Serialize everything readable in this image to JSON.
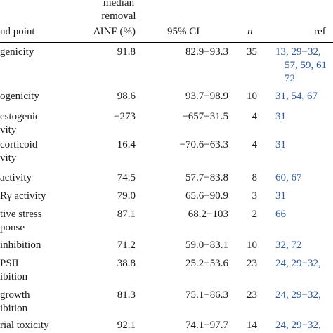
{
  "header": {
    "endpoint": "nd point",
    "removal_line1": "median",
    "removal_line2": "removal",
    "removal_line3": "ΔINF (%)",
    "ci": "95% CI",
    "n": "n",
    "ref": "ref"
  },
  "rows": [
    {
      "endpoint": [
        "genicity"
      ],
      "median": "91.8",
      "ci": "82.9−93.3",
      "n": "35",
      "refs": [
        "13, 29−32,",
        "57, 59, 61",
        "72"
      ]
    },
    {
      "endpoint": [
        "ogenicity"
      ],
      "median": "98.6",
      "ci": "93.7−98.9",
      "n": "10",
      "refs": [
        "31, 54, 67"
      ]
    },
    {
      "endpoint": [
        "estogenic",
        "vity"
      ],
      "median": "−273",
      "ci": "−657−31.5",
      "n": "4",
      "refs": [
        "31"
      ]
    },
    {
      "endpoint": [
        "corticoid",
        "vity"
      ],
      "median": "16.4",
      "ci": "−70.6−63.3",
      "n": "4",
      "refs": [
        "31"
      ]
    },
    {
      "endpoint": [
        "activity"
      ],
      "median": "74.5",
      "ci": "57.7−83.8",
      "n": "8",
      "refs": [
        "60, 67"
      ]
    },
    {
      "endpoint": [
        "Rγ activity"
      ],
      "median": "79.0",
      "ci": "65.6−90.9",
      "n": "3",
      "refs": [
        "31"
      ]
    },
    {
      "endpoint": [
        "tive stress",
        "ponse"
      ],
      "median": "87.1",
      "ci": "68.2−103",
      "n": "2",
      "refs": [
        "66"
      ]
    },
    {
      "endpoint": [
        "inhibition"
      ],
      "median": "71.2",
      "ci": "59.0−83.1",
      "n": "10",
      "refs": [
        "32, 72"
      ]
    },
    {
      "endpoint": [
        "PSII",
        "ibition"
      ],
      "median": "38.8",
      "ci": "25.2−53.6",
      "n": "23",
      "refs": [
        "24, 29−32,"
      ]
    },
    {
      "endpoint": [
        "growth",
        "ibition"
      ],
      "median": "81.3",
      "ci": "75.1−86.3",
      "n": "23",
      "refs": [
        "24, 29−32,"
      ]
    },
    {
      "endpoint": [
        "rial toxicity"
      ],
      "median": "92.1",
      "ci": "74.1−97.7",
      "n": "14",
      "refs": [
        "24, 29−32,"
      ]
    }
  ]
}
